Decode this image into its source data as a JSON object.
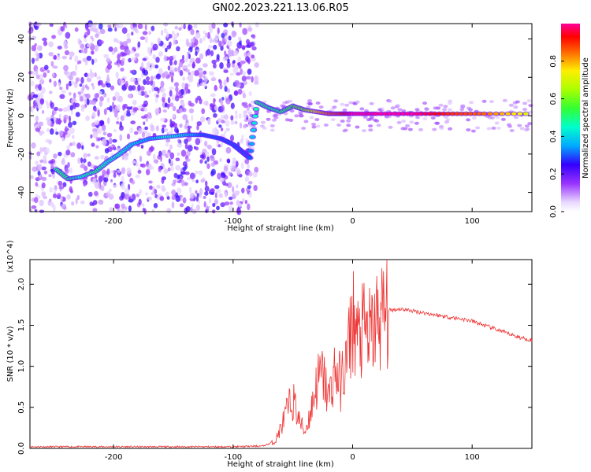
{
  "title": "GN02.2023.221.13.06.R05",
  "chart_data": [
    {
      "type": "heatmap",
      "xlabel": "Height of straight line (km)",
      "ylabel": "Frequency (Hz)",
      "xlim": [
        -270,
        150
      ],
      "ylim": [
        -50,
        48
      ],
      "xticks": [
        -200,
        -100,
        0,
        100
      ],
      "yticks": [
        -40,
        -20,
        0,
        20,
        40
      ],
      "colorbar": {
        "label": "Normalized spectral amplitude",
        "ticks": [
          "0.0",
          "0.2",
          "0.4",
          "0.6",
          "0.8"
        ],
        "range": [
          0,
          1
        ]
      },
      "ridge": {
        "x": [
          -248,
          -238,
          -228,
          -215,
          -205,
          -195,
          -185,
          -170,
          -155,
          -140,
          -125,
          -110,
          -100,
          -92,
          -86,
          -80,
          -70,
          -60,
          -50,
          -40,
          -30,
          -20,
          -10,
          0,
          20,
          50,
          80,
          110,
          150
        ],
        "frequency": [
          -28,
          -33,
          -32,
          -29,
          -24,
          -20,
          -15,
          -12,
          -11,
          -10,
          -10,
          -12,
          -15,
          -19,
          -22,
          7,
          4,
          2,
          5,
          3,
          2,
          1,
          1,
          1,
          1,
          1,
          1,
          1,
          1
        ],
        "amplitude": [
          0.5,
          0.5,
          0.45,
          0.5,
          0.45,
          0.45,
          0.4,
          0.35,
          0.45,
          0.4,
          0.3,
          0.3,
          0.3,
          0.3,
          0.3,
          0.5,
          0.5,
          0.5,
          0.55,
          0.6,
          0.75,
          0.85,
          0.9,
          1.0,
          1.0,
          1.0,
          0.9,
          0.85,
          0.7
        ]
      }
    },
    {
      "type": "line",
      "xlabel": "Height of straight line (km)",
      "ylabel": "SNR (10 * v/v)",
      "scale_label": "(x10^4)",
      "xlim": [
        -270,
        150
      ],
      "ylim": [
        0,
        2.3
      ],
      "xticks": [
        -200,
        -100,
        0,
        100
      ],
      "yticks": [
        "0.0",
        "0.5",
        "1.0",
        "1.5",
        "2.0"
      ],
      "color": "#ee3333",
      "series": [
        {
          "x": [
            -270,
            -200,
            -100,
            -75,
            -65,
            -60,
            -55,
            -50,
            -45,
            -40,
            -35,
            -30,
            -25,
            -20,
            -15,
            -10,
            -5,
            0,
            5,
            10,
            15,
            20,
            25,
            30,
            40,
            60,
            80,
            90,
            100,
            120,
            140,
            150
          ],
          "y": [
            0.02,
            0.02,
            0.02,
            0.03,
            0.08,
            0.25,
            0.45,
            0.6,
            0.35,
            0.2,
            0.45,
            0.8,
            0.9,
            0.6,
            0.95,
            0.8,
            1.05,
            1.6,
            1.3,
            1.45,
            1.35,
            1.55,
            1.62,
            1.68,
            1.7,
            1.65,
            1.6,
            1.58,
            1.55,
            1.45,
            1.35,
            1.32
          ]
        }
      ]
    }
  ]
}
